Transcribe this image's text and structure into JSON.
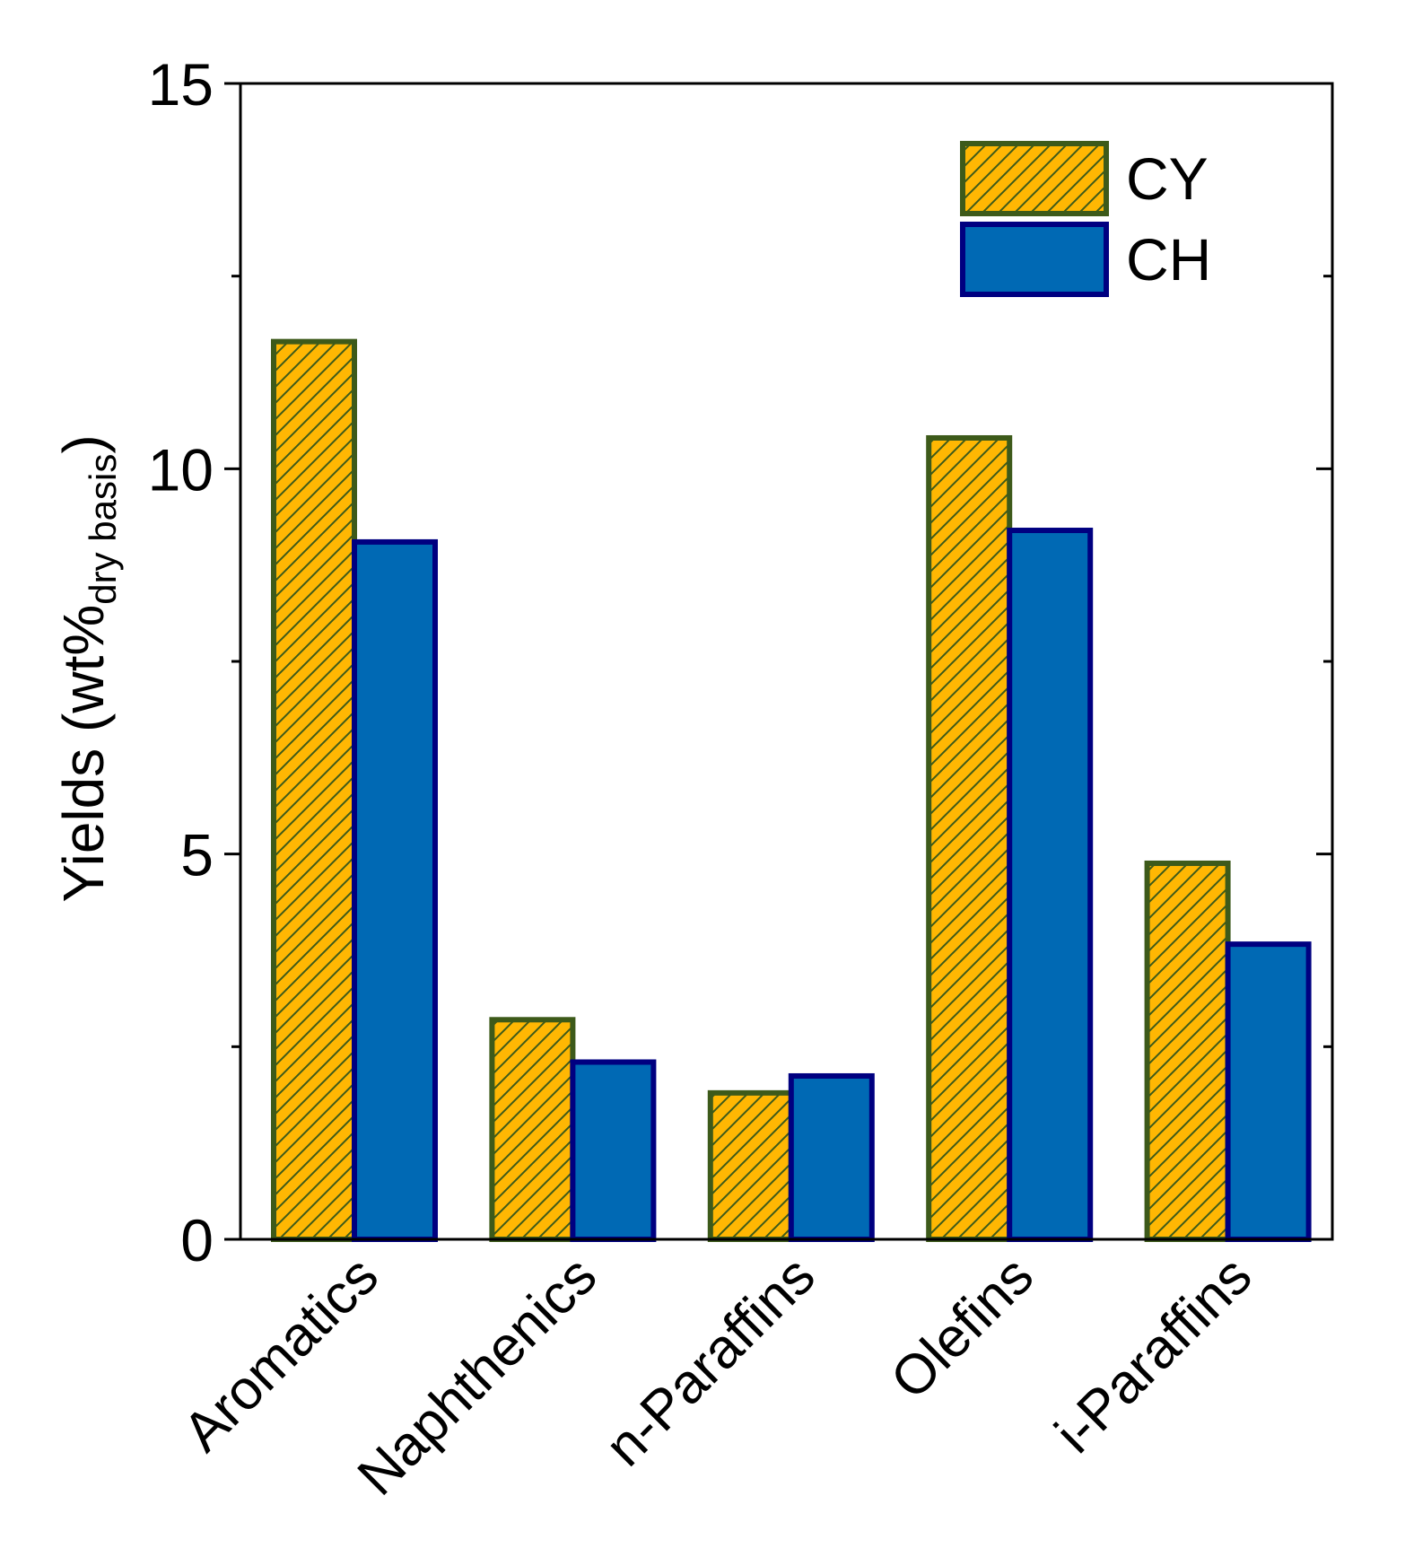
{
  "chart_data": {
    "type": "bar",
    "categories": [
      "Aromatics",
      "Naphthenics",
      "n-Paraffins",
      "Olefins",
      "i-Paraffins"
    ],
    "series": [
      {
        "name": "CY",
        "values": [
          11.65,
          2.85,
          1.9,
          10.4,
          4.88
        ],
        "fill": "#FFB703",
        "stroke": "#3D5A1A",
        "pattern": "hatch"
      },
      {
        "name": "CH",
        "values": [
          9.05,
          2.3,
          2.12,
          9.2,
          3.83
        ],
        "fill": "#0069B4",
        "stroke": "#000080",
        "pattern": "solid"
      }
    ],
    "ylabel_main": "Yields (wt%",
    "ylabel_sub": "dry basis",
    "ylabel_close": ")",
    "xlabel": "",
    "ylim": [
      0,
      15
    ],
    "yticks": [
      0,
      5,
      10,
      15
    ],
    "yticks_minor": [
      2.5,
      7.5,
      12.5
    ],
    "grid": false,
    "legend_position": "top-right"
  }
}
